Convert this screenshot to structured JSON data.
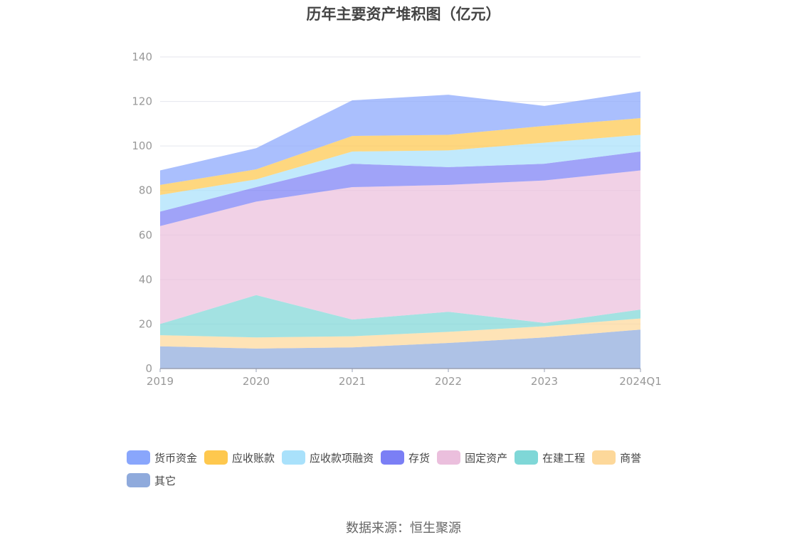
{
  "chart_data": {
    "type": "area",
    "stacked": true,
    "title": "历年主要资产堆积图（亿元）",
    "categories": [
      "2019",
      "2020",
      "2021",
      "2022",
      "2023",
      "2024Q1"
    ],
    "ylim": [
      0,
      140
    ],
    "yticks": [
      0,
      20,
      40,
      60,
      80,
      100,
      120,
      140
    ],
    "grid": true,
    "legend_position": "bottom",
    "series": [
      {
        "name": "其它",
        "color": "#8faadc",
        "values": [
          10,
          9,
          9.5,
          11.5,
          14,
          17.5
        ]
      },
      {
        "name": "商誉",
        "color": "#fdd89a",
        "values": [
          5,
          5,
          5,
          5,
          5,
          5
        ]
      },
      {
        "name": "在建工程",
        "color": "#7fd7d7",
        "values": [
          5,
          19,
          7.5,
          9,
          1.5,
          4
        ]
      },
      {
        "name": "固定资产",
        "color": "#ebbfdd",
        "values": [
          44,
          42,
          59.5,
          57,
          64,
          62.5
        ]
      },
      {
        "name": "存货",
        "color": "#7b7ff5",
        "values": [
          6.5,
          6.5,
          10.5,
          8,
          7.5,
          8.5
        ]
      },
      {
        "name": "应收款项融资",
        "color": "#a9e1fb",
        "values": [
          7.5,
          3.5,
          5.5,
          7.5,
          9.5,
          7.5
        ]
      },
      {
        "name": "应收账款",
        "color": "#fec84e",
        "values": [
          4.5,
          4.5,
          7,
          7,
          7.5,
          7.5
        ]
      },
      {
        "name": "货币资金",
        "color": "#89a6fc",
        "values": [
          6.5,
          9.5,
          16,
          18,
          9,
          12
        ]
      }
    ],
    "legend_order": [
      "货币资金",
      "应收账款",
      "应收款项融资",
      "存货",
      "固定资产",
      "在建工程",
      "商誉",
      "其它"
    ]
  },
  "source_text": "数据来源：恒生聚源"
}
